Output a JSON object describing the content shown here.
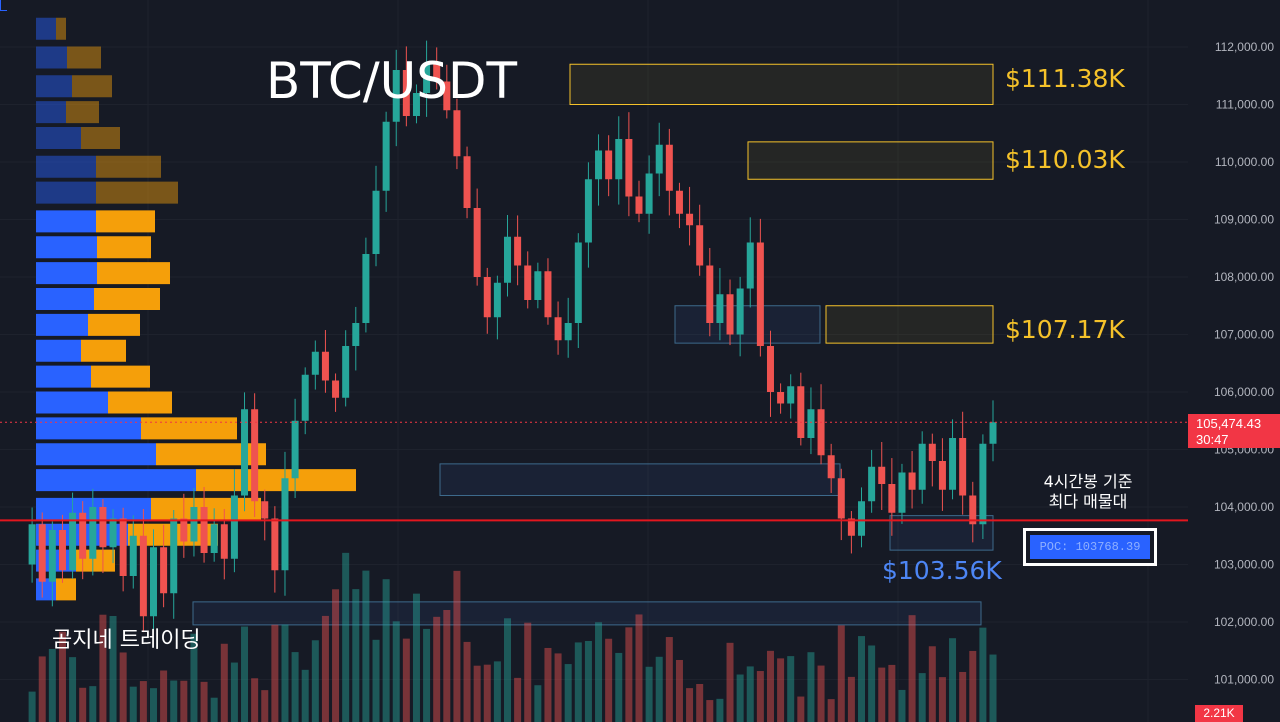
{
  "title": "BTC/USDT",
  "watermark": "곰지네 트레이딩",
  "colors": {
    "up": "#26a69a",
    "down": "#ef5350",
    "zone": "#f5c22a",
    "support": "#4d86f5",
    "poc_line": "#e3161e",
    "vp_up": "#2962ff",
    "vp_down": "#f59f0a"
  },
  "zones": [
    {
      "label": "$111.38K",
      "low": 111000,
      "high": 111700
    },
    {
      "label": "$110.03K",
      "low": 109700,
      "high": 110350
    },
    {
      "label": "$107.17K",
      "low": 106850,
      "high": 107500
    }
  ],
  "support_label": "$103.56K",
  "note": {
    "line1": "4시간봉 기준",
    "line2": "최다 매물대"
  },
  "poc_label": "POC: 103768.39",
  "current_price": {
    "price": "105,474.43",
    "countdown": "30:47"
  },
  "volume_tag": "2.21K",
  "chart_data": {
    "type": "candlestick",
    "title": "BTC/USDT",
    "y_ticks": [
      "112,000.00",
      "111,000.00",
      "110,000.00",
      "109,000.00",
      "108,000.00",
      "107,000.00",
      "106,000.00",
      "105,000.00",
      "104,000.00",
      "103,000.00",
      "102,000.00",
      "101,000.00"
    ],
    "ylim": [
      100300,
      112800
    ],
    "poc": 103768.39,
    "last_price": 105474.43,
    "path": [
      103000,
      103700,
      102700,
      103600,
      102900,
      103900,
      103100,
      104000,
      103300,
      103800,
      102800,
      103500,
      102100,
      103300,
      102500,
      103800,
      103400,
      104000,
      103200,
      103700,
      103100,
      104200,
      105700,
      104100,
      103800,
      102900,
      104500,
      105500,
      106300,
      106700,
      106200,
      105900,
      106800,
      107200,
      108400,
      109500,
      110700,
      111600,
      110800,
      111200,
      111700,
      111400,
      110900,
      110100,
      109200,
      108000,
      107300,
      107900,
      108700,
      108200,
      107600,
      108100,
      107300,
      106900,
      107200,
      108600,
      109700,
      110200,
      109700,
      110400,
      109400,
      109100,
      109800,
      110300,
      109500,
      109100,
      108900,
      108200,
      107200,
      107700,
      107000,
      107800,
      108600,
      106800,
      106000,
      105800,
      106100,
      105200,
      105700,
      104900,
      104500,
      103800,
      103500,
      104100,
      104700,
      104400,
      103900,
      104600,
      104300,
      105100,
      104800,
      104300,
      105200,
      104200,
      103700,
      105100,
      105474
    ],
    "volume_profile": [
      {
        "price": 112300,
        "buy": 20,
        "sell": 10
      },
      {
        "price": 111800,
        "buy": 31,
        "sell": 34
      },
      {
        "price": 111300,
        "buy": 36,
        "sell": 40
      },
      {
        "price": 110850,
        "buy": 30,
        "sell": 33
      },
      {
        "price": 110400,
        "buy": 45,
        "sell": 39
      },
      {
        "price": 109900,
        "buy": 60,
        "sell": 65
      },
      {
        "price": 109450,
        "buy": 60,
        "sell": 82
      },
      {
        "price": 108950,
        "buy": 60,
        "sell": 59
      },
      {
        "price": 108500,
        "buy": 61,
        "sell": 54
      },
      {
        "price": 108050,
        "buy": 61,
        "sell": 73
      },
      {
        "price": 107600,
        "buy": 58,
        "sell": 66
      },
      {
        "price": 107150,
        "buy": 52,
        "sell": 52
      },
      {
        "price": 106700,
        "buy": 45,
        "sell": 45
      },
      {
        "price": 106250,
        "buy": 55,
        "sell": 59
      },
      {
        "price": 105800,
        "buy": 72,
        "sell": 64
      },
      {
        "price": 105350,
        "buy": 105,
        "sell": 96
      },
      {
        "price": 104900,
        "buy": 120,
        "sell": 110
      },
      {
        "price": 104450,
        "buy": 160,
        "sell": 160
      },
      {
        "price": 103950,
        "buy": 115,
        "sell": 110
      },
      {
        "price": 103500,
        "buy": 92,
        "sell": 90
      },
      {
        "price": 103050,
        "buy": 40,
        "sell": 39
      },
      {
        "price": 102550,
        "buy": 20,
        "sell": 20
      }
    ],
    "demand_boxes": [
      {
        "low": 104200,
        "high": 104750
      },
      {
        "low": 101950,
        "high": 102350
      },
      {
        "low": 106850,
        "high": 107500
      },
      {
        "low": 103250,
        "high": 103850
      }
    ]
  }
}
